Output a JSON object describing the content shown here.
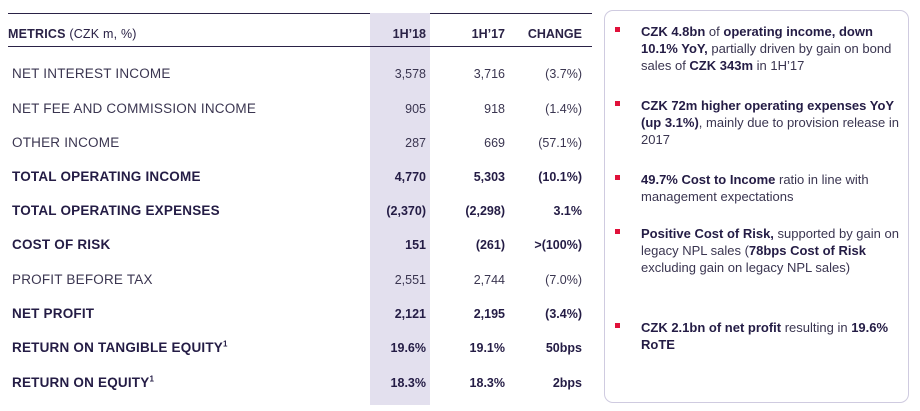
{
  "table": {
    "header": {
      "metrics_label": "METRICS",
      "unit": "(CZK m, %)",
      "col_1h18": "1H’18",
      "col_1h17": "1H’17",
      "col_change": "CHANGE"
    },
    "rows": [
      {
        "label": "NET INTEREST INCOME",
        "sup": "",
        "v1h18": "3,578",
        "v1h17": "3,716",
        "change": "(3.7%)",
        "bold": false
      },
      {
        "label": "NET FEE AND COMMISSION INCOME",
        "sup": "",
        "v1h18": "905",
        "v1h17": "918",
        "change": "(1.4%)",
        "bold": false
      },
      {
        "label": "OTHER INCOME",
        "sup": "",
        "v1h18": "287",
        "v1h17": "669",
        "change": "(57.1%)",
        "bold": false
      },
      {
        "label": "TOTAL OPERATING INCOME",
        "sup": "",
        "v1h18": "4,770",
        "v1h17": "5,303",
        "change": "(10.1%)",
        "bold": true
      },
      {
        "label": "TOTAL OPERATING EXPENSES",
        "sup": "",
        "v1h18": "(2,370)",
        "v1h17": "(2,298)",
        "change": "3.1%",
        "bold": true
      },
      {
        "label": "COST OF RISK",
        "sup": "",
        "v1h18": "151",
        "v1h17": "(261)",
        "change": ">(100%)",
        "bold": true
      },
      {
        "label": "PROFIT BEFORE TAX",
        "sup": "",
        "v1h18": "2,551",
        "v1h17": "2,744",
        "change": "(7.0%)",
        "bold": false
      },
      {
        "label": "NET PROFIT",
        "sup": "",
        "v1h18": "2,121",
        "v1h17": "2,195",
        "change": "(3.4%)",
        "bold": true
      },
      {
        "label": "RETURN ON TANGIBLE EQUITY",
        "sup": "1",
        "v1h18": "19.6%",
        "v1h17": "19.1%",
        "change": "50bps",
        "bold": true
      },
      {
        "label": "RETURN ON EQUITY",
        "sup": "1",
        "v1h18": "18.3%",
        "v1h17": "18.3%",
        "change": "2bps",
        "bold": true
      }
    ]
  },
  "bullets": [
    {
      "segments": [
        {
          "t": "CZK 4.8bn",
          "b": true
        },
        {
          "t": " of ",
          "b": false
        },
        {
          "t": "operating income, down 10.1% YoY,",
          "b": true
        },
        {
          "t": " partially driven by gain on bond sales of ",
          "b": false
        },
        {
          "t": "CZK 343m",
          "b": true
        },
        {
          "t": " in 1H’17",
          "b": false
        }
      ]
    },
    {
      "segments": [
        {
          "t": "CZK 72m higher operating expenses YoY (up 3.1%)",
          "b": true
        },
        {
          "t": ", mainly due to provision release in 2017",
          "b": false
        }
      ]
    },
    {
      "segments": [
        {
          "t": "49.7% Cost to Income",
          "b": true
        },
        {
          "t": " ratio in line with management expectations",
          "b": false
        }
      ]
    },
    {
      "segments": [
        {
          "t": "Positive Cost of Risk,",
          "b": true
        },
        {
          "t": " supported by gain on legacy NPL sales  (",
          "b": false
        },
        {
          "t": "78bps Cost of Risk",
          "b": true
        },
        {
          "t": " excluding gain on legacy NPL sales)",
          "b": false
        }
      ]
    },
    {
      "segments": [
        {
          "t": "CZK 2.1bn of net profit",
          "b": true
        },
        {
          "t": " resulting in ",
          "b": false
        },
        {
          "t": "19.6% RoTE",
          "b": true
        }
      ]
    }
  ]
}
